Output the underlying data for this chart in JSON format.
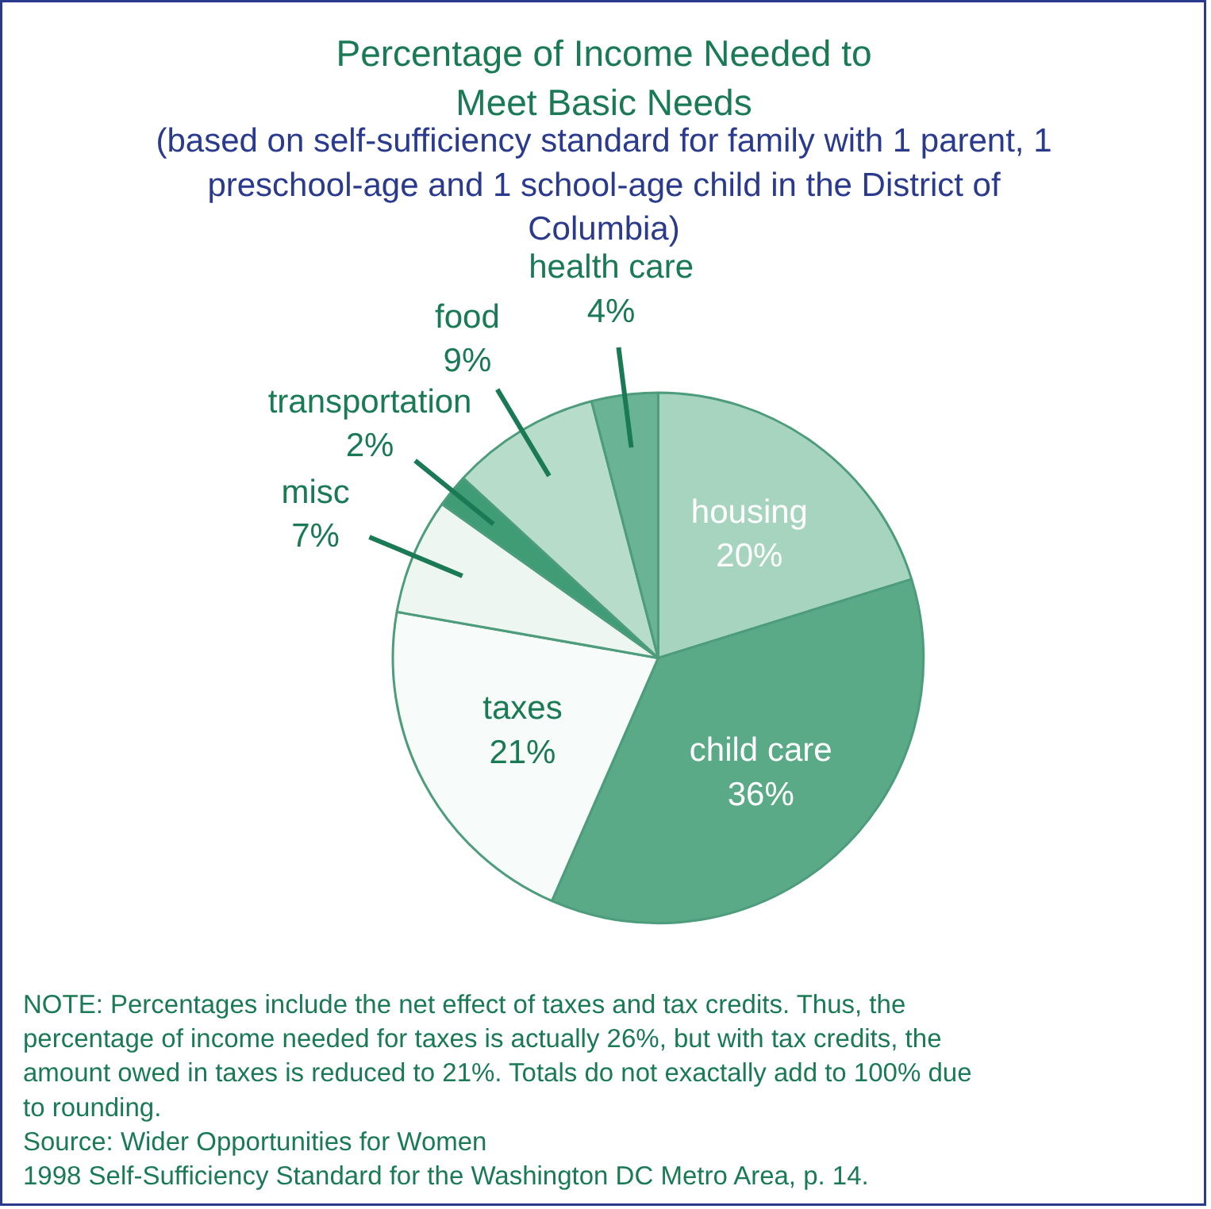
{
  "chart_data": {
    "type": "pie",
    "title": "Percentage of Income Needed to\nMeet Basic Needs",
    "subtitle": "(based on self-sufficiency standard for family with 1 parent, 1 preschool-age and 1 school-age child in the District of Columbia)",
    "categories": [
      "housing",
      "child care",
      "taxes",
      "misc",
      "transportation",
      "food",
      "health care"
    ],
    "values": [
      20,
      36,
      21,
      7,
      2,
      9,
      4
    ],
    "value_labels": [
      "20%",
      "36%",
      "21%",
      "7%",
      "2%",
      "9%",
      "4%"
    ],
    "colors": [
      "#a6d4bf",
      "#5aaa88",
      "#f7fbf9",
      "#eef6f2",
      "#3f9c74",
      "#b8dcca",
      "#6ab495"
    ],
    "annotations": [
      "NOTE: Percentages include the net effect of taxes and tax credits. Thus, the percentage of income needed for taxes is actually 26%, but with tax credits, the amount owed in taxes is reduced to 21%.  Totals do not exactally add to 100% due to rounding.",
      "Source: Wider Opportunities for Women",
      "1998 Self-Sufficiency Standard for the Washington DC Metro Area, p. 14."
    ]
  }
}
